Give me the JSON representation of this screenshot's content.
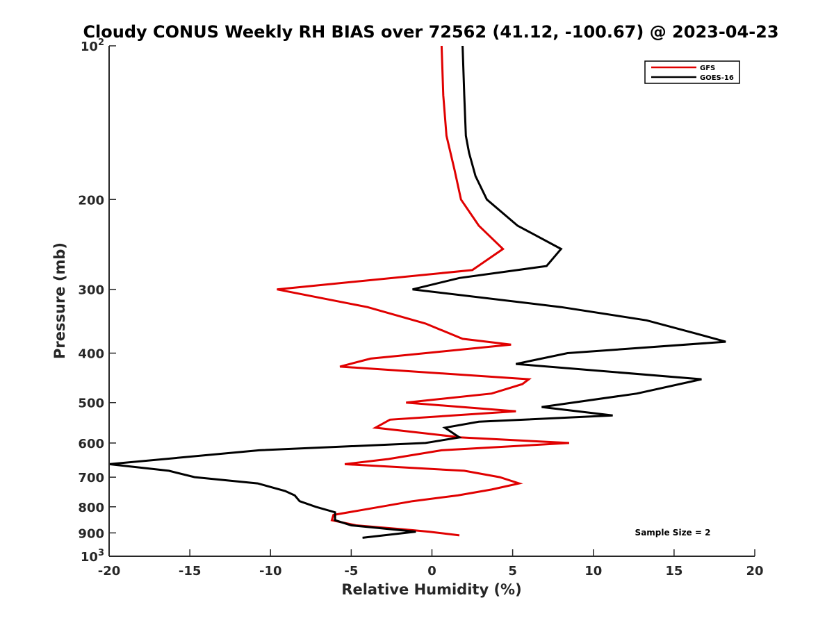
{
  "chart_data": {
    "type": "line",
    "title": "Cloudy CONUS Weekly RH BIAS over 72562 (41.12, -100.67) @ 2023-04-23",
    "xlabel": "Relative Humidity (%)",
    "ylabel": "Pressure (mb)",
    "xlim": [
      -20,
      20
    ],
    "ylim": [
      100,
      1000
    ],
    "yscale": "log",
    "y_reversed": true,
    "grid": false,
    "legend_position": "top-right",
    "x_ticks": [
      "-20",
      "-15",
      "-10",
      "-5",
      "0",
      "5",
      "10",
      "15",
      "20"
    ],
    "y_ticks": [
      {
        "value": 100,
        "base": "10",
        "exp": "2"
      },
      {
        "value": 200,
        "label": "200"
      },
      {
        "value": 300,
        "label": "300"
      },
      {
        "value": 400,
        "label": "400"
      },
      {
        "value": 500,
        "label": "500"
      },
      {
        "value": 600,
        "label": "600"
      },
      {
        "value": 700,
        "label": "700"
      },
      {
        "value": 800,
        "label": "800"
      },
      {
        "value": 900,
        "label": "900"
      },
      {
        "value": 1000,
        "base": "10",
        "exp": "3"
      }
    ],
    "annotation": "Sample Size = 2",
    "series": [
      {
        "name": "GFS",
        "color": "#e00000",
        "points": [
          {
            "x": 0.6,
            "y": 100
          },
          {
            "x": 0.7,
            "y": 125
          },
          {
            "x": 0.9,
            "y": 150
          },
          {
            "x": 1.4,
            "y": 175
          },
          {
            "x": 1.8,
            "y": 200
          },
          {
            "x": 2.9,
            "y": 225
          },
          {
            "x": 4.4,
            "y": 250
          },
          {
            "x": 2.5,
            "y": 275
          },
          {
            "x": -9.6,
            "y": 300
          },
          {
            "x": -4.0,
            "y": 325
          },
          {
            "x": -0.4,
            "y": 350
          },
          {
            "x": 1.9,
            "y": 375
          },
          {
            "x": 4.9,
            "y": 385
          },
          {
            "x": -3.8,
            "y": 410
          },
          {
            "x": -5.7,
            "y": 425
          },
          {
            "x": 6.0,
            "y": 450
          },
          {
            "x": 5.6,
            "y": 460
          },
          {
            "x": 3.7,
            "y": 480
          },
          {
            "x": -1.6,
            "y": 500
          },
          {
            "x": 5.2,
            "y": 520
          },
          {
            "x": -2.6,
            "y": 540
          },
          {
            "x": -3.5,
            "y": 560
          },
          {
            "x": 1.8,
            "y": 585
          },
          {
            "x": 8.5,
            "y": 600
          },
          {
            "x": 0.6,
            "y": 620
          },
          {
            "x": -2.7,
            "y": 645
          },
          {
            "x": -5.4,
            "y": 660
          },
          {
            "x": 2.0,
            "y": 680
          },
          {
            "x": 4.2,
            "y": 700
          },
          {
            "x": 5.4,
            "y": 720
          },
          {
            "x": 3.7,
            "y": 740
          },
          {
            "x": 1.6,
            "y": 760
          },
          {
            "x": -1.2,
            "y": 780
          },
          {
            "x": -3.2,
            "y": 800
          },
          {
            "x": -6.1,
            "y": 830
          },
          {
            "x": -6.2,
            "y": 850
          },
          {
            "x": -4.7,
            "y": 870
          },
          {
            "x": -1.9,
            "y": 885
          },
          {
            "x": -0.2,
            "y": 895
          },
          {
            "x": 1.7,
            "y": 910
          }
        ]
      },
      {
        "name": "GOES-16",
        "color": "#000000",
        "points": [
          {
            "x": 1.9,
            "y": 100
          },
          {
            "x": 2.0,
            "y": 125
          },
          {
            "x": 2.1,
            "y": 150
          },
          {
            "x": 2.3,
            "y": 162
          },
          {
            "x": 2.7,
            "y": 180
          },
          {
            "x": 3.4,
            "y": 200
          },
          {
            "x": 5.3,
            "y": 225
          },
          {
            "x": 8.0,
            "y": 250
          },
          {
            "x": 7.1,
            "y": 270
          },
          {
            "x": 1.7,
            "y": 285
          },
          {
            "x": -1.2,
            "y": 300
          },
          {
            "x": 8.0,
            "y": 325
          },
          {
            "x": 13.3,
            "y": 345
          },
          {
            "x": 16.2,
            "y": 365
          },
          {
            "x": 18.2,
            "y": 380
          },
          {
            "x": 8.4,
            "y": 400
          },
          {
            "x": 5.2,
            "y": 420
          },
          {
            "x": 16.7,
            "y": 450
          },
          {
            "x": 12.7,
            "y": 480
          },
          {
            "x": 6.8,
            "y": 510
          },
          {
            "x": 11.2,
            "y": 530
          },
          {
            "x": 2.9,
            "y": 545
          },
          {
            "x": 0.8,
            "y": 560
          },
          {
            "x": 1.7,
            "y": 585
          },
          {
            "x": -0.4,
            "y": 600
          },
          {
            "x": -10.7,
            "y": 620
          },
          {
            "x": -20.0,
            "y": 660
          },
          {
            "x": -16.3,
            "y": 680
          },
          {
            "x": -14.7,
            "y": 700
          },
          {
            "x": -10.8,
            "y": 720
          },
          {
            "x": -9.1,
            "y": 745
          },
          {
            "x": -8.5,
            "y": 760
          },
          {
            "x": -8.2,
            "y": 780
          },
          {
            "x": -7.2,
            "y": 800
          },
          {
            "x": -6.0,
            "y": 820
          },
          {
            "x": -6.0,
            "y": 850
          },
          {
            "x": -5.0,
            "y": 870
          },
          {
            "x": -1.0,
            "y": 895
          },
          {
            "x": -4.3,
            "y": 920
          }
        ]
      }
    ]
  }
}
